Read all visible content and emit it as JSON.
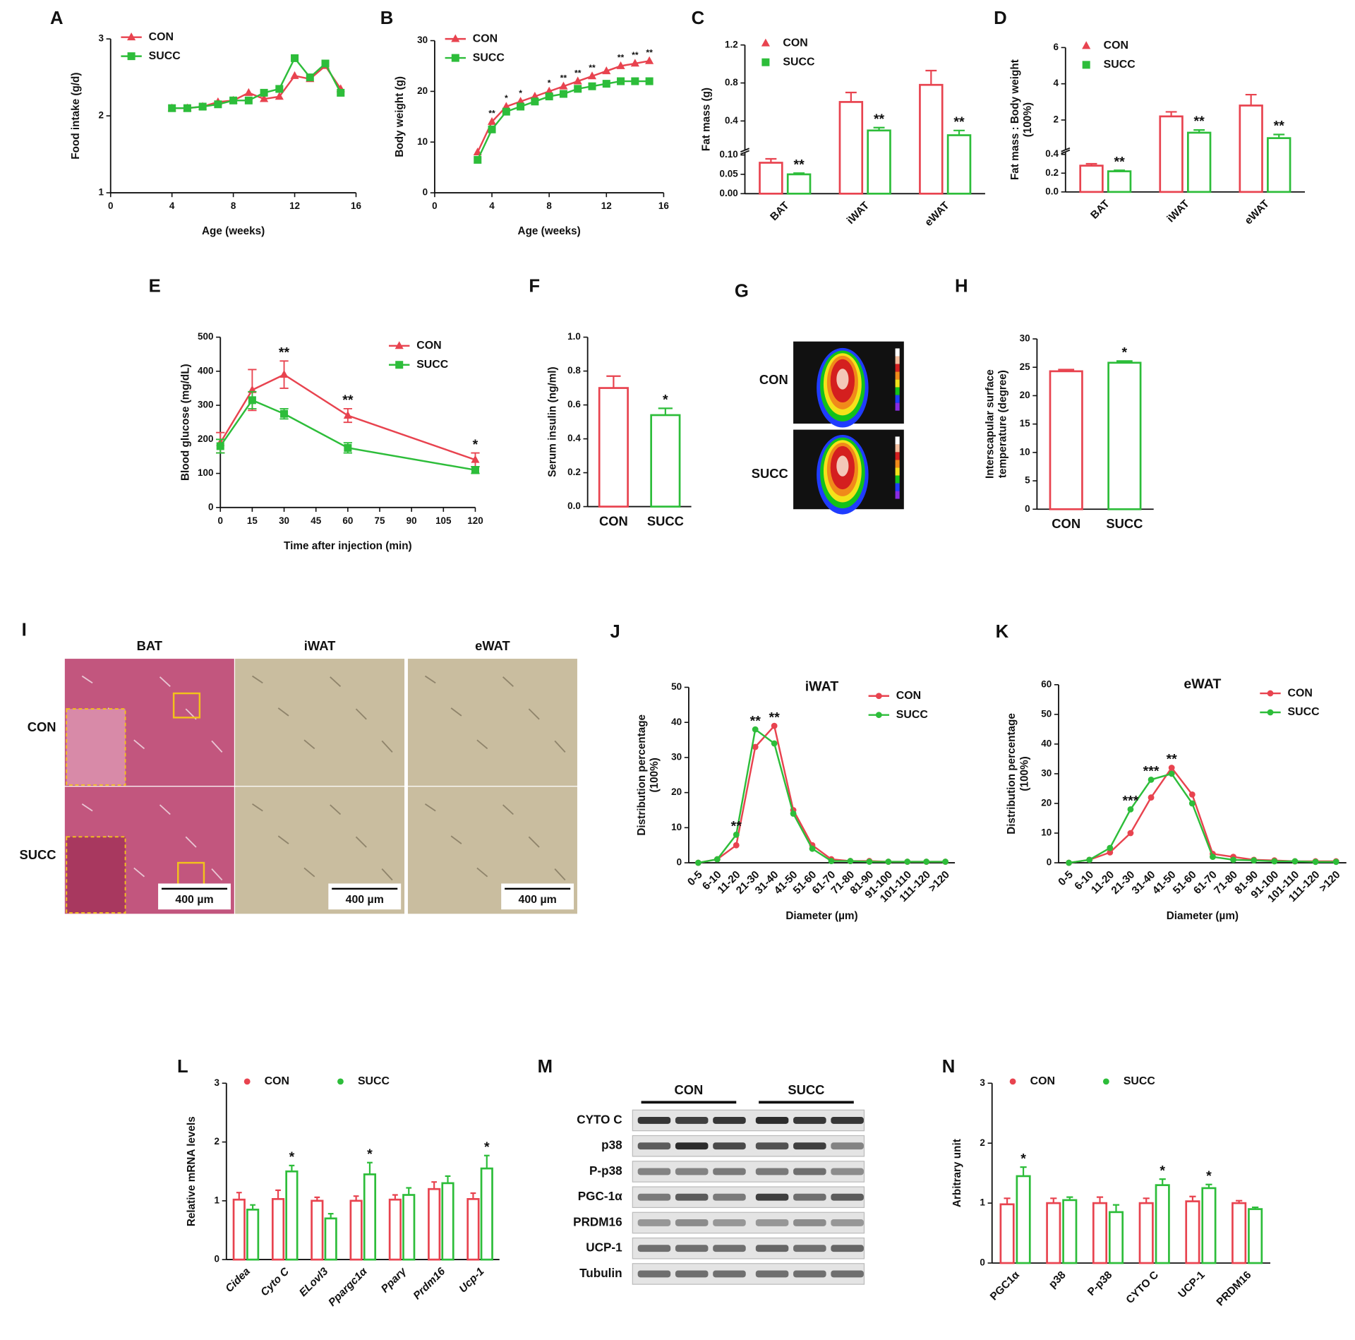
{
  "chart_data": [
    {
      "type": "line",
      "panel": "A",
      "xlabel": "Age (weeks)",
      "ylabel": "Food intake (g/d)",
      "legend": "upper left",
      "x": [
        4,
        5,
        6,
        7,
        8,
        9,
        10,
        11,
        12,
        13,
        14,
        15
      ],
      "xlim": [
        0,
        16
      ],
      "xticks": [
        0,
        4,
        8,
        12,
        16
      ],
      "ylim": [
        1,
        3
      ],
      "yticks": [
        1,
        2,
        3
      ],
      "series": [
        {
          "name": "CON",
          "color": "#e8434f",
          "marker": "triangle",
          "values": [
            2.1,
            2.1,
            2.12,
            2.18,
            2.2,
            2.3,
            2.22,
            2.25,
            2.52,
            2.48,
            2.65,
            2.35
          ]
        },
        {
          "name": "SUCC",
          "color": "#2dbd3a",
          "marker": "square",
          "values": [
            2.1,
            2.1,
            2.12,
            2.15,
            2.2,
            2.2,
            2.3,
            2.35,
            2.75,
            2.5,
            2.68,
            2.3
          ]
        }
      ]
    },
    {
      "type": "line",
      "panel": "B",
      "xlabel": "Age (weeks)",
      "ylabel": "Body weight (g)",
      "legend": "upper left",
      "x": [
        3,
        4,
        5,
        6,
        7,
        8,
        9,
        10,
        11,
        12,
        13,
        14,
        15
      ],
      "xlim": [
        0,
        16
      ],
      "xticks": [
        0,
        4,
        8,
        12,
        16
      ],
      "ylim": [
        0,
        30
      ],
      "yticks": [
        0,
        10,
        20,
        30
      ],
      "series": [
        {
          "name": "CON",
          "color": "#e8434f",
          "marker": "triangle",
          "values": [
            8,
            14,
            17,
            18,
            19,
            20,
            21,
            22,
            23,
            24,
            25,
            25.5,
            26
          ]
        },
        {
          "name": "SUCC",
          "color": "#2dbd3a",
          "marker": "square",
          "values": [
            6.5,
            12.5,
            16,
            17,
            18,
            19,
            19.5,
            20.5,
            21,
            21.5,
            22,
            22,
            22
          ]
        }
      ],
      "annotations": [
        {
          "text": "**",
          "at": 4
        },
        {
          "text": "*",
          "at": 5
        },
        {
          "text": "*",
          "at": 6
        },
        {
          "text": "*",
          "at": 8
        },
        {
          "text": "**",
          "at": 9
        },
        {
          "text": "**",
          "at": 10
        },
        {
          "text": "**",
          "at": 11
        },
        {
          "text": "**",
          "at": 13
        },
        {
          "text": "**",
          "at": 14
        },
        {
          "text": "**",
          "at": 15
        }
      ]
    },
    {
      "type": "bar",
      "panel": "C",
      "ylabel": "Fat mass (g)",
      "legend": "upper left",
      "categories": [
        "BAT",
        "iWAT",
        "eWAT"
      ],
      "ylim": [
        0,
        1.2
      ],
      "ybreak": [
        0.1,
        0.12
      ],
      "yticks": [
        {
          "value": 0,
          "label": "0.00"
        },
        0.05,
        {
          "value": 0.1,
          "label": "0.10"
        },
        0.4,
        0.8,
        1.2
      ],
      "series": [
        {
          "name": "CON",
          "color": "#e8434f",
          "marker": "triangle",
          "values": [
            0.08,
            0.6,
            0.78
          ],
          "errors": [
            0.01,
            0.1,
            0.15
          ]
        },
        {
          "name": "SUCC",
          "color": "#2dbd3a",
          "marker": "square",
          "values": [
            0.05,
            0.3,
            0.25
          ],
          "errors": [
            0.003,
            0.03,
            0.05
          ]
        }
      ],
      "annotations": [
        {
          "text": "**",
          "at": "BAT"
        },
        {
          "text": "**",
          "at": "iWAT"
        },
        {
          "text": "**",
          "at": "eWAT"
        }
      ]
    },
    {
      "type": "bar",
      "panel": "D",
      "ylabel": [
        "Fat mass : Body weight",
        "(100%)"
      ],
      "legend": "upper left",
      "categories": [
        "BAT",
        "iWAT",
        "eWAT"
      ],
      "ylim": [
        0,
        6
      ],
      "ybreak": [
        0.4,
        0.5
      ],
      "yticks": [
        {
          "value": 0,
          "label": "0.0"
        },
        0.2,
        0.4,
        2,
        4,
        6
      ],
      "series": [
        {
          "name": "CON",
          "color": "#e8434f",
          "marker": "triangle",
          "values": [
            0.28,
            2.2,
            2.8
          ],
          "errors": [
            0.02,
            0.25,
            0.6
          ]
        },
        {
          "name": "SUCC",
          "color": "#2dbd3a",
          "marker": "square",
          "values": [
            0.22,
            1.3,
            1.0
          ],
          "errors": [
            0.01,
            0.15,
            0.2
          ]
        }
      ],
      "annotations": [
        {
          "text": "**",
          "at": "BAT"
        },
        {
          "text": "**",
          "at": "iWAT"
        },
        {
          "text": "**",
          "at": "eWAT"
        }
      ]
    },
    {
      "type": "line",
      "panel": "E",
      "xlabel": "Time after injection (min)",
      "ylabel": "Blood glucose (mg/dL)",
      "legend": "upper right",
      "x": [
        0,
        15,
        30,
        60,
        120
      ],
      "xlim": [
        0,
        120
      ],
      "xticks": [
        0,
        15,
        30,
        45,
        60,
        75,
        90,
        105,
        120
      ],
      "ylim": [
        0,
        500
      ],
      "yticks": [
        0,
        100,
        200,
        300,
        400,
        500
      ],
      "series": [
        {
          "name": "CON",
          "color": "#e8434f",
          "marker": "triangle",
          "values": [
            190,
            345,
            390,
            270,
            140
          ],
          "errors": [
            30,
            60,
            40,
            20,
            20
          ]
        },
        {
          "name": "SUCC",
          "color": "#2dbd3a",
          "marker": "square",
          "values": [
            180,
            315,
            275,
            175,
            110
          ],
          "errors": [
            20,
            25,
            15,
            15,
            10
          ]
        }
      ],
      "annotations": [
        {
          "text": "**",
          "at": 30
        },
        {
          "text": "**",
          "at": 60
        },
        {
          "text": "*",
          "at": 120
        }
      ]
    },
    {
      "type": "bar",
      "panel": "F",
      "ylabel": "Serum insulin (ng/ml)",
      "categories": [
        "CON",
        "SUCC"
      ],
      "values": [
        0.7,
        0.54
      ],
      "errors": [
        0.07,
        0.04
      ],
      "colors": [
        "#e8434f",
        "#2dbd3a"
      ],
      "ylim": [
        0,
        1
      ],
      "yticks": [
        {
          "value": 0,
          "label": "0.0"
        },
        0.2,
        0.4,
        0.6,
        0.8,
        {
          "value": 1,
          "label": "1.0"
        }
      ],
      "annotations": [
        {
          "text": "*",
          "at": "SUCC"
        }
      ]
    },
    {
      "type": "bar",
      "panel": "H",
      "ylabel": [
        "Interscapular surface",
        "temperature (degree)"
      ],
      "categories": [
        "CON",
        "SUCC"
      ],
      "values": [
        24.3,
        25.8
      ],
      "errors": [
        0.3,
        0.3
      ],
      "colors": [
        "#e8434f",
        "#2dbd3a"
      ],
      "ylim": [
        0,
        30
      ],
      "yticks": [
        0,
        5,
        10,
        15,
        20,
        25,
        30
      ],
      "annotations": [
        {
          "text": "*",
          "at": "SUCC"
        }
      ]
    },
    {
      "type": "line",
      "panel": "J",
      "title": "iWAT",
      "xlabel": "Diameter (µm)",
      "ylabel": [
        "Distribution percentage",
        "(100%)"
      ],
      "legend": "upper right",
      "categories": [
        "0-5",
        "6-10",
        "11-20",
        "21-30",
        "31-40",
        "41-50",
        "51-60",
        "61-70",
        "71-80",
        "81-90",
        "91-100",
        "101-110",
        "111-120",
        ">120"
      ],
      "ylim": [
        0,
        50
      ],
      "yticks": [
        0,
        10,
        20,
        30,
        40,
        50
      ],
      "series": [
        {
          "name": "CON",
          "color": "#e8434f",
          "marker": "circle",
          "values": [
            0,
            1,
            5,
            33,
            39,
            15,
            5,
            1,
            0.5,
            0.5,
            0.3,
            0.3,
            0.3,
            0.3
          ]
        },
        {
          "name": "SUCC",
          "color": "#2dbd3a",
          "marker": "circle",
          "values": [
            0,
            1,
            8,
            38,
            34,
            14,
            4,
            0.5,
            0.5,
            0.3,
            0.3,
            0.3,
            0.3,
            0.3
          ]
        }
      ],
      "annotations": [
        {
          "text": "**",
          "at": "11-20"
        },
        {
          "text": "**",
          "at": "21-30"
        },
        {
          "text": "**",
          "at": "31-40"
        }
      ]
    },
    {
      "type": "line",
      "panel": "K",
      "title": "eWAT",
      "xlabel": "Diameter (µm)",
      "ylabel": [
        "Distribution percentage",
        "(100%)"
      ],
      "legend": "upper right",
      "categories": [
        "0-5",
        "6-10",
        "11-20",
        "21-30",
        "31-40",
        "41-50",
        "51-60",
        "61-70",
        "71-80",
        "81-90",
        "91-100",
        "101-110",
        "111-120",
        ">120"
      ],
      "ylim": [
        0,
        60
      ],
      "yticks": [
        0,
        10,
        20,
        30,
        40,
        50,
        60
      ],
      "series": [
        {
          "name": "CON",
          "color": "#e8434f",
          "marker": "circle",
          "values": [
            0,
            1,
            3.5,
            10,
            22,
            32,
            23,
            3,
            2,
            1,
            0.8,
            0.5,
            0.5,
            0.5
          ]
        },
        {
          "name": "SUCC",
          "color": "#2dbd3a",
          "marker": "circle",
          "values": [
            0,
            1,
            5,
            18,
            28,
            30,
            20,
            2,
            1,
            0.8,
            0.5,
            0.5,
            0.3,
            0.3
          ]
        }
      ],
      "annotations": [
        {
          "text": "***",
          "at": "21-30"
        },
        {
          "text": "***",
          "at": "31-40"
        },
        {
          "text": "**",
          "at": "41-50"
        }
      ]
    },
    {
      "type": "bar",
      "panel": "L",
      "ylabel": "Relative mRNA levels",
      "legend": "upper left",
      "categories": [
        "Cidea",
        "Cyto C",
        "ELovl3",
        "Ppargc1α",
        "Pparγ",
        "Prdm16",
        "Ucp-1"
      ],
      "ylim": [
        0,
        3
      ],
      "yticks": [
        0,
        1,
        2,
        3
      ],
      "series": [
        {
          "name": "CON",
          "color": "#e8434f",
          "marker": "circle",
          "values": [
            1.02,
            1.03,
            1.0,
            1.0,
            1.02,
            1.2,
            1.03
          ],
          "errors": [
            0.12,
            0.15,
            0.06,
            0.08,
            0.08,
            0.12,
            0.1
          ]
        },
        {
          "name": "SUCC",
          "color": "#2dbd3a",
          "marker": "circle",
          "values": [
            0.85,
            1.5,
            0.7,
            1.45,
            1.1,
            1.3,
            1.55
          ],
          "errors": [
            0.08,
            0.1,
            0.08,
            0.2,
            0.12,
            0.12,
            0.22
          ]
        }
      ],
      "annotations": [
        {
          "text": "*",
          "at": "Cyto C"
        },
        {
          "text": "*",
          "at": "Ppargc1α"
        },
        {
          "text": "*",
          "at": "Ucp-1"
        }
      ]
    },
    {
      "type": "bar",
      "panel": "N",
      "ylabel": "Arbitrary unit",
      "legend": "upper left",
      "categories": [
        "PGC1α",
        "p38",
        "P-p38",
        "CYTO C",
        "UCP-1",
        "PRDM16"
      ],
      "ylim": [
        0,
        3
      ],
      "yticks": [
        0,
        1,
        2,
        3
      ],
      "series": [
        {
          "name": "CON",
          "color": "#e8434f",
          "marker": "circle",
          "values": [
            0.98,
            1.0,
            1.0,
            1.0,
            1.03,
            1.0
          ],
          "errors": [
            0.1,
            0.08,
            0.1,
            0.08,
            0.08,
            0.04
          ]
        },
        {
          "name": "SUCC",
          "color": "#2dbd3a",
          "marker": "circle",
          "values": [
            1.45,
            1.05,
            0.85,
            1.3,
            1.25,
            0.9
          ],
          "errors": [
            0.15,
            0.05,
            0.12,
            0.1,
            0.06,
            0.03
          ]
        }
      ],
      "annotations": [
        {
          "text": "*",
          "at": "PGC1α"
        },
        {
          "text": "*",
          "at": "CYTO C"
        },
        {
          "text": "*",
          "at": "UCP-1"
        }
      ]
    }
  ],
  "thermal": {
    "panel": "G",
    "labels": [
      "CON",
      "SUCC"
    ]
  },
  "histology": {
    "panel": "I",
    "columns": [
      "BAT",
      "iWAT",
      "eWAT"
    ],
    "rows": [
      "CON",
      "SUCC"
    ],
    "scale_bar": "400 µm"
  },
  "blot": {
    "panel": "M",
    "groups": [
      "CON",
      "SUCC"
    ],
    "rows": [
      "CYTO C",
      "p38",
      "P-p38",
      "PGC-1α",
      "PRDM16",
      "UCP-1",
      "Tubulin"
    ]
  }
}
